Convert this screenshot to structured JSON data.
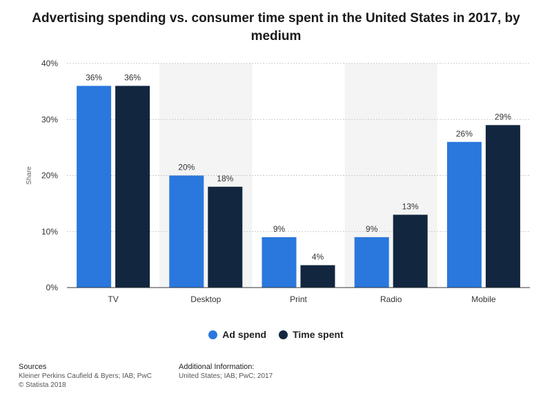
{
  "title": "Advertising spending vs. consumer time spent in the United States in 2017, by medium",
  "chart_data": {
    "type": "bar",
    "title": "Advertising spending vs. consumer time spent in the United States in 2017, by medium",
    "xlabel": "",
    "ylabel": "Share",
    "categories": [
      "TV",
      "Desktop",
      "Print",
      "Radio",
      "Mobile"
    ],
    "series": [
      {
        "name": "Ad spend",
        "values": [
          36,
          20,
          9,
          9,
          26
        ],
        "labels": [
          "36%",
          "20%",
          "9%",
          "9%",
          "26%"
        ],
        "color": "#2a78dd"
      },
      {
        "name": "Time spent",
        "values": [
          36,
          18,
          4,
          13,
          29
        ],
        "labels": [
          "36%",
          "18%",
          "4%",
          "13%",
          "29%"
        ],
        "color": "#12263f"
      }
    ],
    "ylim": [
      0,
      40
    ],
    "yticks": [
      0,
      10,
      20,
      30,
      40
    ],
    "ytick_labels": [
      "0%",
      "10%",
      "20%",
      "30%",
      "40%"
    ],
    "grid": true,
    "legend": "bottom-center"
  },
  "footer": {
    "sources_heading": "Sources",
    "sources_line1": "Kleiner Perkins Caufield & Byers; IAB; PwC",
    "sources_line2": "© Statista 2018",
    "additional_heading": "Additional Information:",
    "additional_line1": "United States; IAB; PwC; 2017"
  }
}
